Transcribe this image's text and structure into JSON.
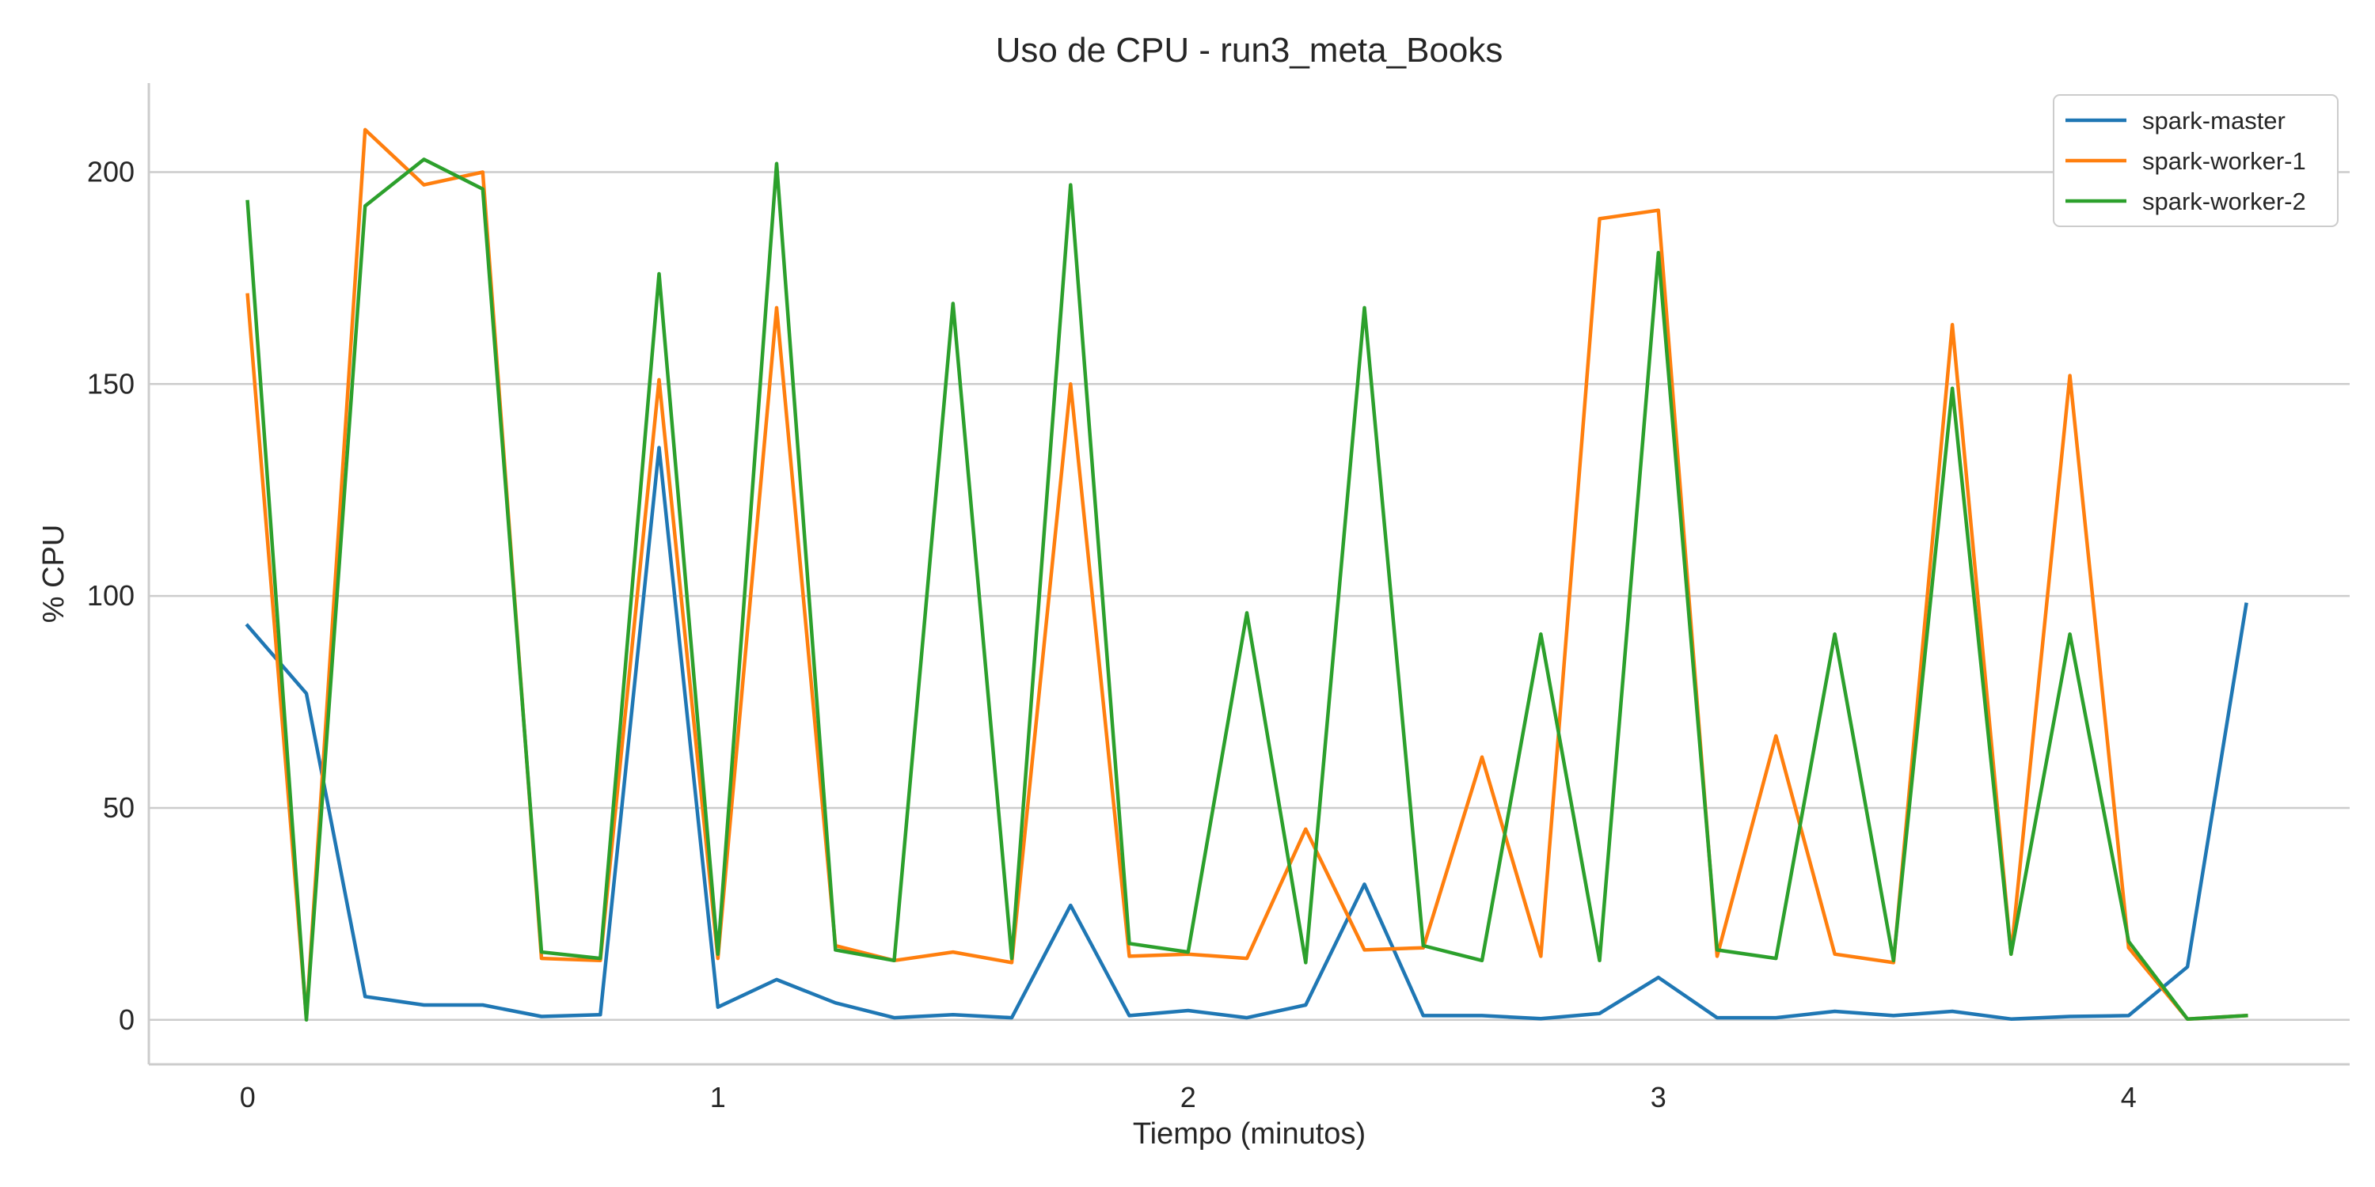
{
  "chart_data": {
    "type": "line",
    "title": "Uso de CPU - run3_meta_Books",
    "xlabel": "Tiempo (minutos)",
    "ylabel": "% CPU",
    "xlim": [
      -0.21,
      4.47
    ],
    "ylim": [
      -10.5,
      221
    ],
    "xticks": [
      0,
      1,
      2,
      3,
      4
    ],
    "yticks": [
      0,
      50,
      100,
      150,
      200
    ],
    "grid": "horizontal",
    "legend_position": "top-right",
    "x": [
      0,
      0.125,
      0.25,
      0.375,
      0.5,
      0.625,
      0.75,
      0.875,
      1.0,
      1.125,
      1.25,
      1.375,
      1.5,
      1.625,
      1.75,
      1.875,
      2.0,
      2.125,
      2.25,
      2.375,
      2.5,
      2.625,
      2.75,
      2.875,
      3.0,
      3.125,
      3.25,
      3.375,
      3.5,
      3.625,
      3.75,
      3.875,
      4.0,
      4.125,
      4.25
    ],
    "series": [
      {
        "name": "spark-master",
        "color": "#1f77b4",
        "values": [
          93,
          77,
          5.5,
          3.5,
          3.5,
          0.8,
          1.2,
          135,
          3,
          9.5,
          4,
          0.5,
          1.2,
          0.5,
          27,
          1,
          2.2,
          0.5,
          3.5,
          32,
          1,
          1,
          0.3,
          1.5,
          10,
          0.5,
          0.5,
          2,
          1,
          2,
          0.2,
          0.8,
          1,
          12.5,
          98
        ]
      },
      {
        "name": "spark-worker-1",
        "color": "#ff7f0e",
        "values": [
          171,
          0.5,
          210,
          197,
          200,
          14.5,
          14,
          151,
          14.5,
          168,
          17.5,
          14,
          16,
          13.5,
          150,
          15,
          15.5,
          14.5,
          45,
          16.5,
          17,
          62,
          15,
          189,
          191,
          15,
          67,
          15.5,
          13.5,
          164,
          15.5,
          152,
          17,
          0.2,
          1
        ]
      },
      {
        "name": "spark-worker-2",
        "color": "#2ca02c",
        "values": [
          193,
          0,
          192,
          203,
          196,
          16,
          14.5,
          176,
          15.5,
          202,
          16.5,
          14,
          169,
          14.5,
          197,
          18,
          16,
          96,
          13.5,
          168,
          17.5,
          14,
          91,
          14,
          181,
          16.5,
          14.5,
          91,
          14,
          149,
          15.5,
          91,
          18.5,
          0.2,
          1
        ]
      }
    ]
  }
}
